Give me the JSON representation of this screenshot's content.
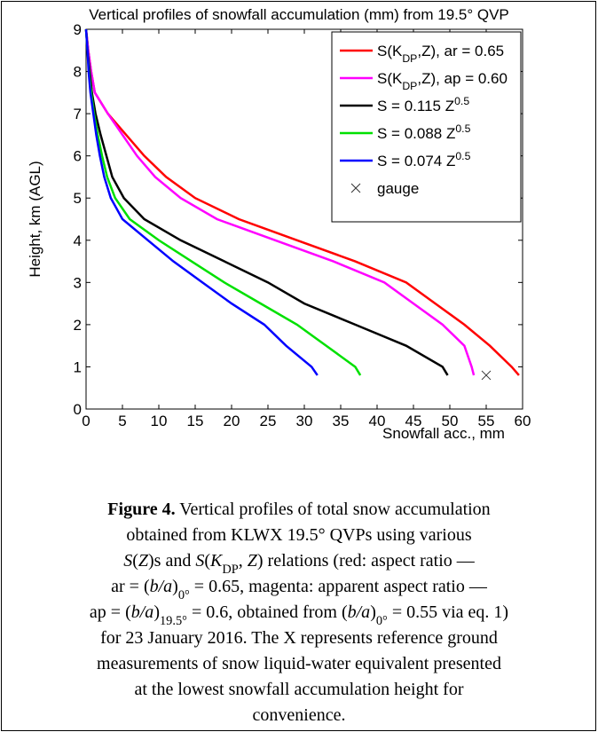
{
  "chart_data": {
    "type": "line",
    "title": "Vertical profiles of snowfall accumulation (mm) from 19.5° QVP",
    "xlabel": "Snowfall acc., mm",
    "ylabel": "Height, km (AGL)",
    "xlim": [
      0,
      60
    ],
    "xticks": [
      0,
      5,
      10,
      15,
      20,
      25,
      30,
      35,
      40,
      45,
      50,
      55,
      60
    ],
    "ylim": [
      0,
      9
    ],
    "yticks": [
      0,
      1,
      2,
      3,
      4,
      5,
      6,
      7,
      8,
      9
    ],
    "grid": false,
    "legend": "upper right",
    "y": [
      9,
      8.5,
      8,
      7.5,
      7,
      6.5,
      6,
      5.5,
      5,
      4.5,
      4,
      3.5,
      3,
      2.5,
      2,
      1.5,
      1,
      0.8
    ],
    "series": [
      {
        "name": [
          "S(K",
          {
            "text": "DP",
            "style": "sub"
          },
          ",Z), ar = 0.65"
        ],
        "color": "#ff0000",
        "x": [
          0,
          0.3,
          0.7,
          1.2,
          3,
          5.5,
          8,
          11,
          15,
          21,
          29,
          37,
          44,
          48,
          52,
          55.5,
          58.5,
          59.5
        ]
      },
      {
        "name": [
          "S(K",
          {
            "text": "DP",
            "style": "sub"
          },
          ",Z), ap = 0.60"
        ],
        "color": "#ff00ff",
        "x": [
          0,
          0.3,
          0.7,
          1.2,
          3,
          5,
          7,
          9.5,
          13,
          18,
          26,
          34,
          41,
          45,
          49,
          52,
          53,
          53.3
        ]
      },
      {
        "name": [
          "S = 0.115 Z",
          {
            "text": "0.5",
            "style": "super"
          }
        ],
        "color": "#000000",
        "x": [
          0,
          0.2,
          0.5,
          0.8,
          1.3,
          2,
          2.8,
          3.6,
          5.2,
          8,
          13,
          19,
          25,
          30,
          37,
          44,
          49,
          49.7
        ]
      },
      {
        "name": [
          "S = 0.088 Z",
          {
            "text": "0.5",
            "style": "super"
          }
        ],
        "color": "#00e000",
        "x": [
          0,
          0.2,
          0.4,
          0.7,
          1.1,
          1.6,
          2.2,
          2.9,
          4,
          6,
          10,
          14.5,
          19,
          24,
          29,
          33,
          37,
          37.7
        ]
      },
      {
        "name": [
          "S = 0.074 Z",
          {
            "text": "0.5",
            "style": "super"
          }
        ],
        "color": "#0000ff",
        "x": [
          0,
          0.2,
          0.35,
          0.6,
          1,
          1.4,
          1.9,
          2.5,
          3.4,
          5,
          8.5,
          12,
          16,
          20,
          24.5,
          27.5,
          31,
          31.8
        ]
      }
    ],
    "gauge": {
      "name": "gauge",
      "x": 55,
      "y": 0.8,
      "color": "#333333"
    }
  },
  "caption": [
    [
      {
        "text": "Figure 4.",
        "style": "b"
      },
      " Vertical profiles of total snow accumulation"
    ],
    [
      "obtained from KLWX 19.5° QVPs using various"
    ],
    [
      {
        "text": "S",
        "style": "i"
      },
      "(",
      {
        "text": "Z",
        "style": "i"
      },
      ")s and ",
      {
        "text": "S",
        "style": "i"
      },
      "(",
      {
        "text": "K",
        "style": "i"
      },
      {
        "text": "DP",
        "style": "sub"
      },
      ", ",
      {
        "text": "Z",
        "style": "i"
      },
      ") relations (red: aspect ratio —"
    ],
    [
      "ar = (",
      {
        "text": "b/a",
        "style": "i"
      },
      ")",
      {
        "text": "0°",
        "style": "sub"
      },
      " = 0.65, magenta: apparent aspect ratio —"
    ],
    [
      "ap = (",
      {
        "text": "b/a",
        "style": "i"
      },
      ")",
      {
        "text": "19.5°",
        "style": "sub"
      },
      " = 0.6, obtained from (",
      {
        "text": "b/a",
        "style": "i"
      },
      ")",
      {
        "text": "0°",
        "style": "sub"
      },
      " = 0.55 via eq. 1)"
    ],
    [
      "for 23 January 2016. The X represents reference ground"
    ],
    [
      "measurements of snow liquid-water equivalent presented"
    ],
    [
      "at the lowest snowfall accumulation height for"
    ],
    [
      "convenience."
    ]
  ]
}
